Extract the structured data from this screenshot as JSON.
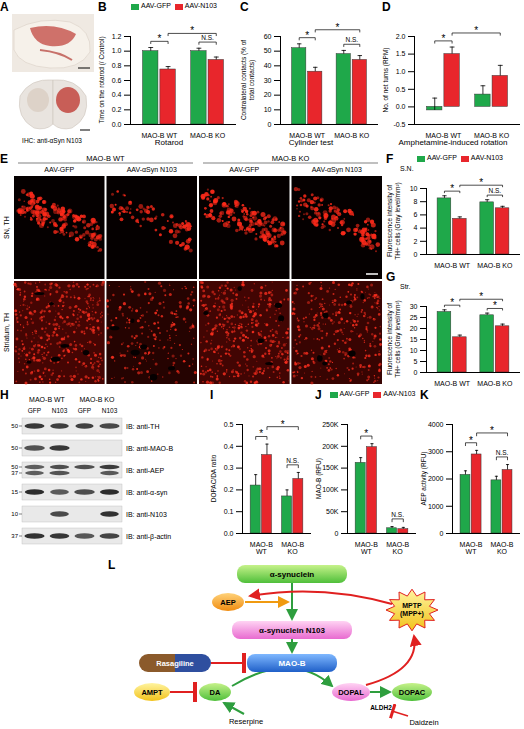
{
  "chart_data": [
    {
      "panel": "B",
      "type": "bar",
      "title": "Rotarod",
      "ylabel": "Time on the rotarod (/ Control)",
      "categories": [
        "MAO-B WT",
        "MAO-B KO"
      ],
      "series": [
        {
          "name": "AAV-GFP",
          "color": "#1fa84a",
          "values": [
            1.0,
            1.0
          ],
          "errors": [
            0.05,
            0.04
          ]
        },
        {
          "name": "AAV-N103",
          "color": "#e8262c",
          "values": [
            0.75,
            0.88
          ],
          "errors": [
            0.04,
            0.04
          ]
        }
      ],
      "ylim": [
        0,
        1.2
      ],
      "yticks": [
        {
          "value": 0,
          "label": "0.0"
        },
        0.2,
        0.4,
        0.6,
        0.8,
        {
          "value": 1,
          "label": "1.0"
        },
        1.2
      ],
      "legend": "top",
      "annotations": [
        {
          "text": "*",
          "from": [
            "MAO-B WT",
            "AAV-GFP"
          ],
          "to": [
            "MAO-B WT",
            "AAV-N103"
          ]
        },
        {
          "text": "N.S.",
          "from": [
            "MAO-B KO",
            "AAV-GFP"
          ],
          "to": [
            "MAO-B KO",
            "AAV-N103"
          ]
        },
        {
          "text": "*",
          "from": [
            "MAO-B WT",
            "AAV-N103"
          ],
          "to": [
            "MAO-B KO",
            "AAV-N103"
          ]
        }
      ]
    },
    {
      "panel": "C",
      "type": "bar",
      "title": "Cylinder test",
      "ylabel": "Contralateral contacts (% of total contacts)",
      "categories": [
        "MAO-B WT",
        "MAO-B KO"
      ],
      "series": [
        {
          "name": "AAV-GFP",
          "color": "#1fa84a",
          "values": [
            52,
            48
          ],
          "errors": [
            3,
            2.5
          ]
        },
        {
          "name": "AAV-N103",
          "color": "#e8262c",
          "values": [
            36,
            44
          ],
          "errors": [
            3,
            3
          ]
        }
      ],
      "ylim": [
        0,
        60
      ],
      "yticks": [
        0,
        10,
        20,
        30,
        40,
        50,
        60
      ],
      "annotations": [
        {
          "text": "*",
          "from": [
            "MAO-B WT",
            "AAV-GFP"
          ],
          "to": [
            "MAO-B WT",
            "AAV-N103"
          ]
        },
        {
          "text": "N.S.",
          "from": [
            "MAO-B KO",
            "AAV-GFP"
          ],
          "to": [
            "MAO-B KO",
            "AAV-N103"
          ]
        },
        {
          "text": "*",
          "from": [
            "MAO-B WT",
            "AAV-N103"
          ],
          "to": [
            "MAO-B KO",
            "AAV-N103"
          ]
        }
      ]
    },
    {
      "panel": "D",
      "type": "bar",
      "title": "Amphetamine-induced rotation",
      "ylabel": "No. of net turns (RPM)",
      "categories": [
        "MAO-B WT",
        "MAO-B KO"
      ],
      "series": [
        {
          "name": "AAV-GFP",
          "color": "#1fa84a",
          "values": [
            -0.1,
            0.35
          ],
          "errors": [
            0.35,
            0.25
          ]
        },
        {
          "name": "AAV-N103",
          "color": "#e8262c",
          "values": [
            1.5,
            0.88
          ],
          "errors": [
            0.2,
            0.3
          ]
        }
      ],
      "ylim": [
        -0.5,
        2.0
      ],
      "yticks": [
        -0.5,
        {
          "value": 0,
          "label": "0.0"
        },
        0.5,
        {
          "value": 1,
          "label": "1.0"
        },
        1.5,
        {
          "value": 2,
          "label": "2.0"
        }
      ],
      "annotations": [
        {
          "text": "*",
          "from": [
            "MAO-B WT",
            "AAV-GFP"
          ],
          "to": [
            "MAO-B WT",
            "AAV-N103"
          ]
        },
        {
          "text": "*",
          "from": [
            "MAO-B WT",
            "AAV-N103"
          ],
          "to": [
            "MAO-B KO",
            "AAV-N103"
          ]
        }
      ]
    },
    {
      "panel": "F",
      "type": "bar",
      "corner_label": "S.N.",
      "ylabel": "Fluorescence intensity of TH+ cells (Gray level/mm²)",
      "categories": [
        "MAO-B WT",
        "MAO-B KO"
      ],
      "series": [
        {
          "name": "AAV-GFP",
          "color": "#1fa84a",
          "values": [
            8.5,
            7.9
          ],
          "errors": [
            0.4,
            0.4
          ]
        },
        {
          "name": "AAV-N103",
          "color": "#e8262c",
          "values": [
            5.4,
            7.0
          ],
          "errors": [
            0.3,
            0.3
          ]
        }
      ],
      "ylim": [
        0,
        10
      ],
      "yticks": [
        0,
        2,
        4,
        6,
        8,
        10
      ],
      "legend": "top",
      "annotations": [
        {
          "text": "*",
          "from": [
            "MAO-B WT",
            "AAV-GFP"
          ],
          "to": [
            "MAO-B WT",
            "AAV-N103"
          ]
        },
        {
          "text": "N.S.",
          "from": [
            "MAO-B KO",
            "AAV-GFP"
          ],
          "to": [
            "MAO-B KO",
            "AAV-N103"
          ]
        },
        {
          "text": "*",
          "from": [
            "MAO-B WT",
            "AAV-N103"
          ],
          "to": [
            "MAO-B KO",
            "AAV-N103"
          ]
        }
      ]
    },
    {
      "panel": "G",
      "type": "bar",
      "corner_label": "Str.",
      "ylabel": "Fluorescence intensity of TH+ cells (Gray level/mm²)",
      "categories": [
        "MAO-B WT",
        "MAO-B KO"
      ],
      "series": [
        {
          "name": "AAV-GFP",
          "color": "#1fa84a",
          "values": [
            27.5,
            26
          ],
          "errors": [
            1,
            1
          ]
        },
        {
          "name": "AAV-N103",
          "color": "#e8262c",
          "values": [
            16,
            21
          ],
          "errors": [
            1,
            1
          ]
        }
      ],
      "ylim": [
        0,
        30
      ],
      "yticks": [
        0,
        5,
        10,
        15,
        20,
        25,
        30
      ],
      "annotations": [
        {
          "text": "*",
          "from": [
            "MAO-B WT",
            "AAV-GFP"
          ],
          "to": [
            "MAO-B WT",
            "AAV-N103"
          ]
        },
        {
          "text": "*",
          "from": [
            "MAO-B KO",
            "AAV-GFP"
          ],
          "to": [
            "MAO-B KO",
            "AAV-N103"
          ]
        },
        {
          "text": "*",
          "from": [
            "MAO-B WT",
            "AAV-N103"
          ],
          "to": [
            "MAO-B KO",
            "AAV-N103"
          ]
        }
      ]
    },
    {
      "panel": "I",
      "type": "bar",
      "ylabel": "DOPAC/DA ratio",
      "categories": [
        "MAO-B WT",
        "MAO-B KO"
      ],
      "series": [
        {
          "name": "AAV-GFP",
          "color": "#1fa84a",
          "values": [
            0.22,
            0.17
          ],
          "errors": [
            0.05,
            0.03
          ]
        },
        {
          "name": "AAV-N103",
          "color": "#e8262c",
          "values": [
            0.36,
            0.25
          ],
          "errors": [
            0.05,
            0.03
          ]
        }
      ],
      "ylim": [
        0,
        0.5
      ],
      "yticks": [
        {
          "value": 0,
          "label": "0.0"
        },
        0.1,
        0.2,
        0.3,
        0.4,
        0.5
      ],
      "annotations": [
        {
          "text": "*",
          "from": [
            "MAO-B WT",
            "AAV-GFP"
          ],
          "to": [
            "MAO-B WT",
            "AAV-N103"
          ]
        },
        {
          "text": "N.S.",
          "from": [
            "MAO-B KO",
            "AAV-GFP"
          ],
          "to": [
            "MAO-B KO",
            "AAV-N103"
          ]
        },
        {
          "text": "*",
          "from": [
            "MAO-B WT",
            "AAV-N103"
          ],
          "to": [
            "MAO-B KO",
            "AAV-N103"
          ]
        }
      ]
    },
    {
      "panel": "J",
      "type": "bar",
      "ylabel": "MAO-B (RFU)",
      "categories": [
        "MAO-B WT",
        "MAO-B KO"
      ],
      "series": [
        {
          "name": "AAV-GFP",
          "color": "#1fa84a",
          "values": [
            162000,
            12000
          ],
          "errors": [
            12000,
            4000
          ]
        },
        {
          "name": "AAV-N103",
          "color": "#e8262c",
          "values": [
            198000,
            10000
          ],
          "errors": [
            8000,
            4000
          ]
        }
      ],
      "ylim": [
        0,
        250000
      ],
      "yticks": [
        0,
        {
          "value": 50000,
          "label": "50K"
        },
        {
          "value": 100000,
          "label": "100K"
        },
        {
          "value": 150000,
          "label": "150K"
        },
        {
          "value": 200000,
          "label": "200K"
        },
        {
          "value": 250000,
          "label": "250K"
        }
      ],
      "legend": "top",
      "annotations": [
        {
          "text": "*",
          "from": [
            "MAO-B WT",
            "AAV-GFP"
          ],
          "to": [
            "MAO-B WT",
            "AAV-N103"
          ]
        },
        {
          "text": "N.S.",
          "from": [
            "MAO-B KO",
            "AAV-GFP"
          ],
          "to": [
            "MAO-B KO",
            "AAV-N103"
          ]
        }
      ]
    },
    {
      "panel": "K",
      "type": "bar",
      "ylabel": "AEP activity (RFU)",
      "categories": [
        "MAO-B WT",
        "MAO-B KO"
      ],
      "series": [
        {
          "name": "AAV-GFP",
          "color": "#1fa84a",
          "values": [
            2150,
            1950
          ],
          "errors": [
            150,
            150
          ]
        },
        {
          "name": "AAV-N103",
          "color": "#e8262c",
          "values": [
            2900,
            2330
          ],
          "errors": [
            150,
            200
          ]
        }
      ],
      "ylim": [
        0,
        4000
      ],
      "yticks": [
        0,
        1000,
        2000,
        3000,
        4000
      ],
      "annotations": [
        {
          "text": "*",
          "from": [
            "MAO-B WT",
            "AAV-GFP"
          ],
          "to": [
            "MAO-B WT",
            "AAV-N103"
          ]
        },
        {
          "text": "N.S.",
          "from": [
            "MAO-B KO",
            "AAV-GFP"
          ],
          "to": [
            "MAO-B KO",
            "AAV-N103"
          ]
        },
        {
          "text": "*",
          "from": [
            "MAO-B WT",
            "AAV-N103"
          ],
          "to": [
            "MAO-B KO",
            "AAV-N103"
          ]
        }
      ]
    }
  ],
  "images": [
    {
      "panel": "A",
      "caption": "IHC: anti-αSyn N103"
    },
    {
      "panel": "E",
      "groups": [
        "MAO-B WT",
        "MAO-B KO"
      ],
      "columns": [
        "AAV-GFP",
        "AAV-αSyn N103",
        "AAV-GFP",
        "AAV-αSyn N103"
      ],
      "rows": [
        "SN, TH",
        "Striatum, TH"
      ]
    }
  ],
  "blot": {
    "panel": "H",
    "groups": [
      "MAO-B WT",
      "MAO-B KO"
    ],
    "lanes": [
      "GFP",
      "N103",
      "GFP",
      "N103"
    ],
    "rows": [
      {
        "label": "IB: anti-TH",
        "markers": [
          50
        ],
        "bands": [
          [
            true,
            true,
            true,
            true
          ]
        ]
      },
      {
        "label": "IB: anti-MAO-B",
        "markers": [
          50
        ],
        "bands": [
          [
            true,
            true,
            false,
            false
          ]
        ]
      },
      {
        "label": "IB: anti-AEP",
        "markers": [
          50,
          37
        ],
        "bands": [
          [
            true,
            true,
            true,
            true
          ],
          [
            true,
            true,
            false,
            true
          ]
        ]
      },
      {
        "label": "IB: anti-α-syn",
        "markers": [
          15
        ],
        "bands": [
          [
            true,
            true,
            true,
            true
          ]
        ]
      },
      {
        "label": "IB: anti-N103",
        "markers": [
          10
        ],
        "bands": [
          [
            false,
            true,
            false,
            true
          ]
        ]
      },
      {
        "label": "IB: anti-β-actin",
        "markers": [
          37
        ],
        "bands": [
          [
            true,
            true,
            true,
            true
          ]
        ]
      }
    ]
  },
  "diagram": {
    "panel": "L",
    "nodes": [
      "α-synuclein",
      "AEP",
      "MPTP (MPP+)",
      "α-synuclein N103",
      "MAO-B",
      "Rasagiline",
      "AMPT",
      "DA",
      "DOPAL",
      "DOPAC",
      "ALDH2",
      "Reserpine",
      "Daidzein"
    ]
  }
}
